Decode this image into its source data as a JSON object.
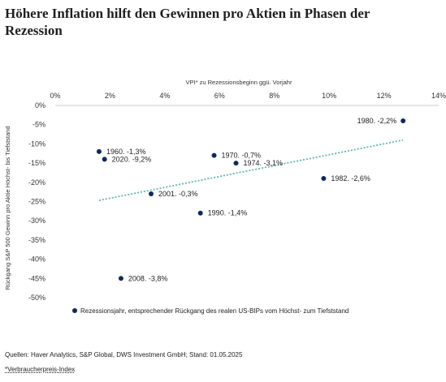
{
  "title": "Höhere Inflation hilft den Gewinnen pro Aktien in Phasen der Rezession",
  "source": "Quellen: Haver Analytics, S&P Global, DWS Investment GmbH; Stand: 01.05.2025",
  "footnote": "*Verbraucherpreis-Index",
  "colors": {
    "point": "#0d2a5c",
    "trend": "#5fb7a8",
    "grid": "#d9d9d9",
    "axis": "#cccccc"
  },
  "chart_data": {
    "type": "scatter",
    "xlabel": "VPI* zu Rezessionsbeginn ggü. Vorjahr",
    "ylabel": "Rückgang S&P 500 Gewinn pro Aktie Höchst- bis Tiefststand",
    "x_ticks": [
      "0%",
      "2%",
      "4%",
      "6%",
      "8%",
      "10%",
      "12%",
      "14%"
    ],
    "y_ticks": [
      "0%",
      "-5%",
      "-10%",
      "-15%",
      "-20%",
      "-25%",
      "-30%",
      "-35%",
      "-40%",
      "-45%",
      "-50%"
    ],
    "xlim": [
      0,
      14
    ],
    "ylim": [
      -50,
      0
    ],
    "x_axis_position": "top",
    "grid": false,
    "legend": "Rezessionsjahr, entsprechender Rückgang des realen US-BIPs vom Höchst- zum Tiefststand",
    "legend_position": "bottom",
    "points": [
      {
        "label": "1960. -1,3%",
        "x": 1.6,
        "y": -12
      },
      {
        "label": "2020. -9,2%",
        "x": 1.8,
        "y": -14
      },
      {
        "label": "2001. -0,3%",
        "x": 3.5,
        "y": -23
      },
      {
        "label": "2008. -3,8%",
        "x": 2.4,
        "y": -45
      },
      {
        "label": "1990. -1,4%",
        "x": 5.3,
        "y": -28
      },
      {
        "label": "1970. -0,7%",
        "x": 5.8,
        "y": -13
      },
      {
        "label": "1974. -3,1%",
        "x": 6.6,
        "y": -15
      },
      {
        "label": "1982. -2,6%",
        "x": 9.8,
        "y": -19
      },
      {
        "label": "1980. -2,2%",
        "x": 12.7,
        "y": -4
      }
    ],
    "trendline": {
      "x": [
        1.6,
        12.7
      ],
      "y": [
        -24.7,
        -9.0
      ]
    }
  }
}
